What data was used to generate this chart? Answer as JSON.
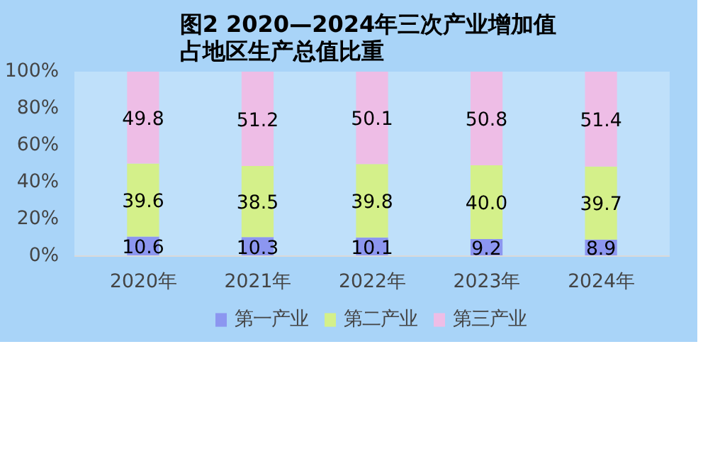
{
  "chart_data": {
    "type": "bar",
    "stacked": true,
    "title": "图2  2020—2024年三次产业增加值占地区生产总值比重",
    "categories": [
      "2020年",
      "2021年",
      "2022年",
      "2023年",
      "2024年"
    ],
    "series": [
      {
        "name": "第一产业",
        "color": "#8c96f0",
        "values": [
          10.6,
          10.3,
          10.1,
          9.2,
          8.9
        ]
      },
      {
        "name": "第二产业",
        "color": "#d4f08a",
        "values": [
          39.6,
          38.5,
          39.8,
          40.0,
          39.7
        ],
        "value_labels": [
          "39.6",
          "38.5",
          "39.8",
          "40.0",
          "39.7"
        ]
      },
      {
        "name": "第三产业",
        "color": "#eebde6",
        "values": [
          49.8,
          51.2,
          50.1,
          50.8,
          51.4
        ]
      }
    ],
    "ylim": [
      0,
      100
    ],
    "yticks": [
      {
        "value": 0,
        "label": "0%"
      },
      {
        "value": 20,
        "label": "20%"
      },
      {
        "value": 40,
        "label": "40%"
      },
      {
        "value": 60,
        "label": "60%"
      },
      {
        "value": 80,
        "label": "80%"
      },
      {
        "value": 100,
        "label": "100%"
      }
    ],
    "data_labels": true,
    "grid": false,
    "legend": "bottom"
  }
}
